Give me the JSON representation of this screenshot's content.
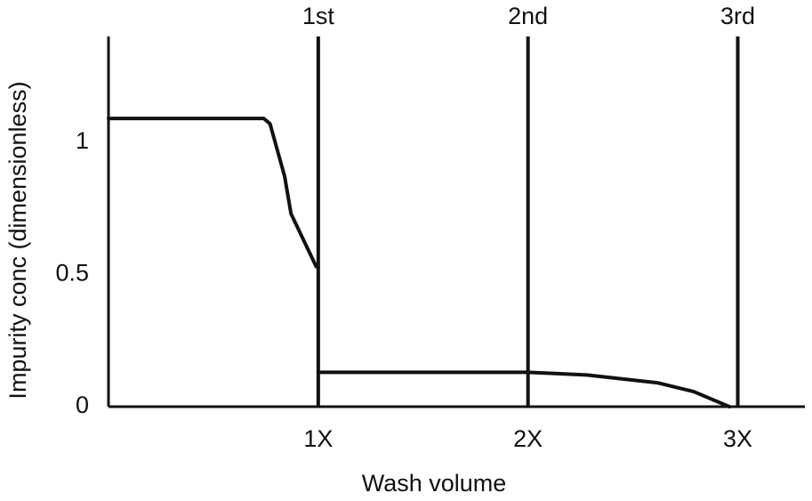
{
  "chart_data": {
    "type": "line",
    "xlabel": "Wash volume",
    "ylabel": "Impurity conc (dimensionless)",
    "x": [
      0,
      0.74,
      0.77,
      0.84,
      0.87,
      0.99,
      1.0,
      1.0,
      2.0,
      2.28,
      2.62,
      2.79,
      2.96
    ],
    "series": [
      {
        "color": "#111111",
        "values": [
          1.09,
          1.09,
          1.07,
          0.87,
          0.73,
          0.53,
          null,
          0.13,
          0.13,
          0.12,
          0.09,
          0.057,
          0
        ]
      }
    ],
    "xlim": [
      0,
      3.32
    ],
    "ylim": [
      0,
      1.4
    ],
    "xticks": [
      {
        "value": 1,
        "label": "1X"
      },
      {
        "value": 2,
        "label": "2X"
      },
      {
        "value": 3,
        "label": "3X"
      }
    ],
    "yticks": [
      0,
      0.5,
      1
    ],
    "vlines": [
      {
        "x": 1,
        "label": "1st"
      },
      {
        "x": 2,
        "label": "2nd"
      },
      {
        "x": 3,
        "label": "3rd"
      }
    ]
  }
}
